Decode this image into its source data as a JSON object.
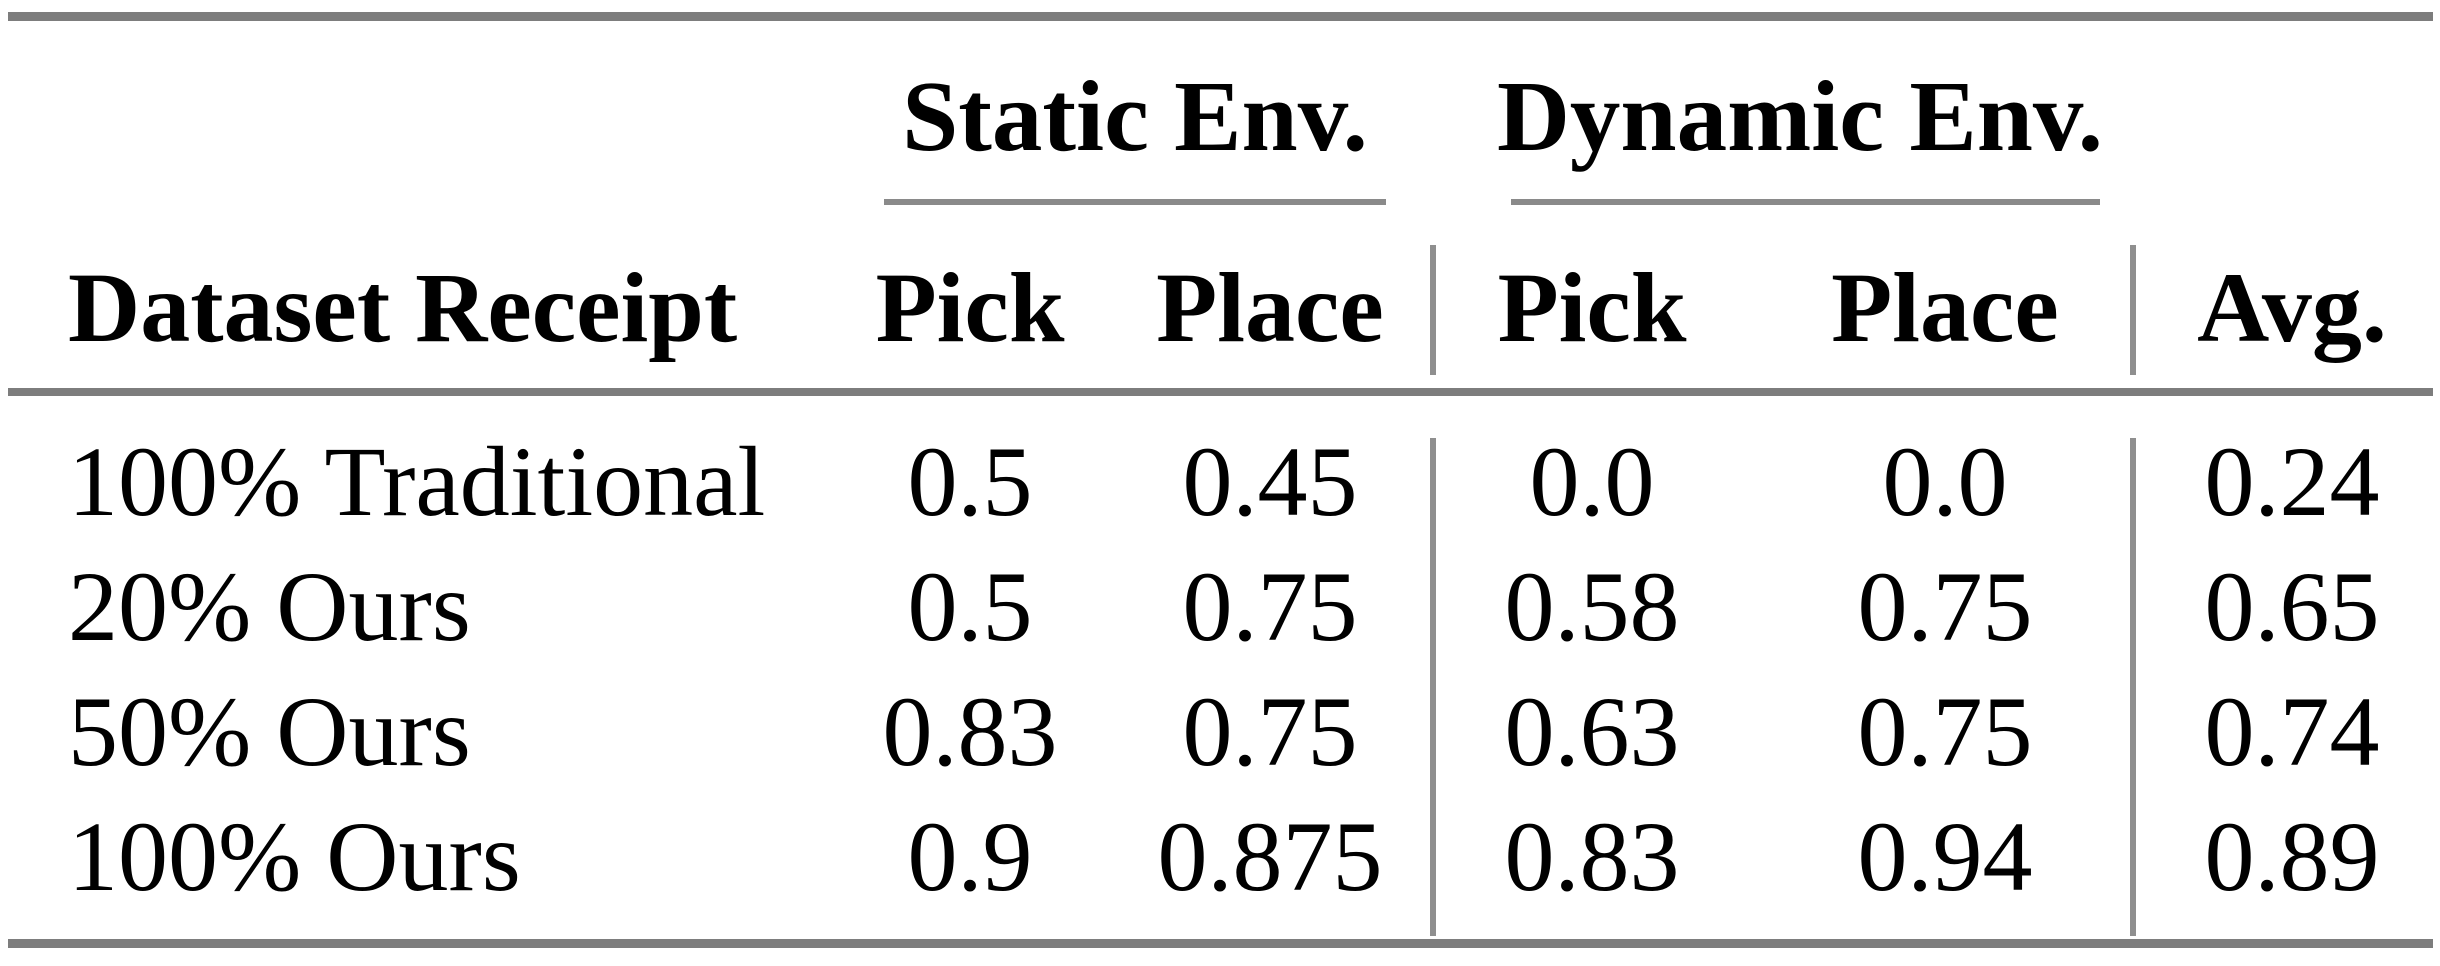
{
  "table": {
    "header": {
      "row_label": "Dataset Receipt",
      "static_group": {
        "label": "Static Env.",
        "columns": [
          "Pick",
          "Place"
        ]
      },
      "dynamic_group": {
        "label": "Dynamic Env.",
        "columns": [
          "Pick",
          "Place"
        ]
      },
      "avg": "Avg."
    },
    "rows": [
      {
        "label": "100% Traditional",
        "values": [
          "0.5",
          "0.45",
          "0.0",
          "0.0",
          "0.24"
        ]
      },
      {
        "label": "20% Ours",
        "values": [
          "0.5",
          "0.75",
          "0.58",
          "0.75",
          "0.65"
        ]
      },
      {
        "label": "50% Ours",
        "values": [
          "0.83",
          "0.75",
          "0.63",
          "0.75",
          "0.74"
        ]
      },
      {
        "label": "100% Ours",
        "values": [
          "0.9",
          "0.875",
          "0.83",
          "0.94",
          "0.89"
        ]
      }
    ]
  },
  "colors": {
    "rule": "#7d7d7d",
    "separator": "#8f8f8f",
    "cmidrule": "#8a8a8a",
    "text": "#000000",
    "bg": "#ffffff"
  }
}
